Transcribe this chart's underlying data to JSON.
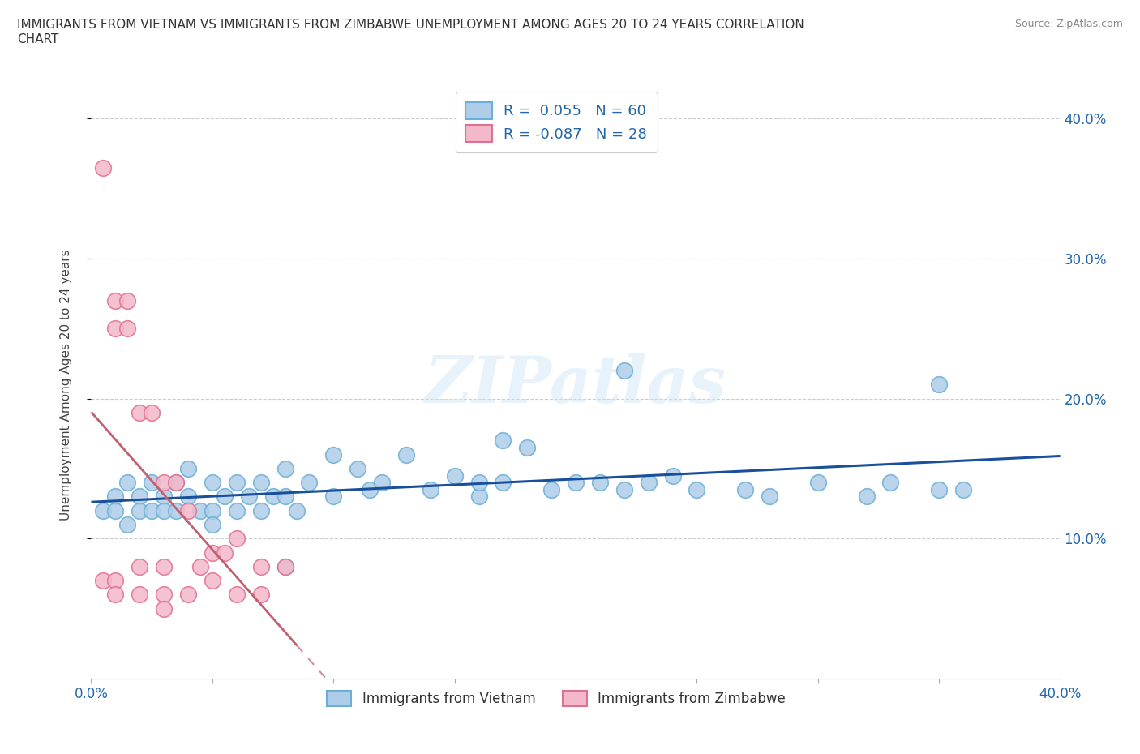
{
  "title": "IMMIGRANTS FROM VIETNAM VS IMMIGRANTS FROM ZIMBABWE UNEMPLOYMENT AMONG AGES 20 TO 24 YEARS CORRELATION\nCHART",
  "source": "Source: ZipAtlas.com",
  "ylabel": "Unemployment Among Ages 20 to 24 years",
  "xlim": [
    0,
    0.4
  ],
  "ylim": [
    0,
    0.42
  ],
  "yticks_right": [
    0.1,
    0.2,
    0.3,
    0.4
  ],
  "ytick_labels_right": [
    "10.0%",
    "20.0%",
    "30.0%",
    "40.0%"
  ],
  "color_vietnam": "#6baed6",
  "color_vietnam_fill": "#aecde8",
  "color_zimbabwe_edge": "#e07090",
  "color_zimbabwe_fill": "#f4b8cb",
  "color_trendline_vietnam": "#1a4f9c",
  "color_trendline_zimbabwe": "#c06070",
  "background_color": "#ffffff",
  "vietnam_x": [
    0.005,
    0.01,
    0.01,
    0.015,
    0.015,
    0.02,
    0.02,
    0.025,
    0.025,
    0.03,
    0.03,
    0.035,
    0.035,
    0.04,
    0.04,
    0.045,
    0.05,
    0.05,
    0.05,
    0.055,
    0.06,
    0.06,
    0.065,
    0.07,
    0.07,
    0.075,
    0.08,
    0.08,
    0.085,
    0.09,
    0.1,
    0.1,
    0.11,
    0.115,
    0.12,
    0.13,
    0.14,
    0.15,
    0.16,
    0.17,
    0.18,
    0.19,
    0.2,
    0.21,
    0.22,
    0.23,
    0.24,
    0.25,
    0.27,
    0.28,
    0.3,
    0.32,
    0.33,
    0.35,
    0.35,
    0.22,
    0.16,
    0.17,
    0.36,
    0.08
  ],
  "vietnam_y": [
    0.12,
    0.13,
    0.12,
    0.14,
    0.11,
    0.13,
    0.12,
    0.14,
    0.12,
    0.13,
    0.12,
    0.14,
    0.12,
    0.15,
    0.13,
    0.12,
    0.14,
    0.12,
    0.11,
    0.13,
    0.14,
    0.12,
    0.13,
    0.14,
    0.12,
    0.13,
    0.15,
    0.13,
    0.12,
    0.14,
    0.16,
    0.13,
    0.15,
    0.135,
    0.14,
    0.16,
    0.135,
    0.145,
    0.13,
    0.14,
    0.165,
    0.135,
    0.14,
    0.14,
    0.135,
    0.14,
    0.145,
    0.135,
    0.135,
    0.13,
    0.14,
    0.13,
    0.14,
    0.21,
    0.135,
    0.22,
    0.14,
    0.17,
    0.135,
    0.08
  ],
  "zimbabwe_x": [
    0.005,
    0.005,
    0.01,
    0.01,
    0.01,
    0.01,
    0.015,
    0.015,
    0.02,
    0.02,
    0.02,
    0.025,
    0.03,
    0.03,
    0.03,
    0.03,
    0.035,
    0.04,
    0.04,
    0.045,
    0.05,
    0.05,
    0.055,
    0.06,
    0.06,
    0.07,
    0.07,
    0.08
  ],
  "zimbabwe_y": [
    0.365,
    0.07,
    0.27,
    0.25,
    0.07,
    0.06,
    0.27,
    0.25,
    0.19,
    0.08,
    0.06,
    0.19,
    0.14,
    0.08,
    0.06,
    0.05,
    0.14,
    0.12,
    0.06,
    0.08,
    0.09,
    0.07,
    0.09,
    0.1,
    0.06,
    0.08,
    0.06,
    0.08
  ],
  "trendline_vietnam_x0": 0.0,
  "trendline_vietnam_x1": 0.4,
  "trendline_zimbabwe_x0": 0.0,
  "trendline_zimbabwe_x1": 0.4
}
